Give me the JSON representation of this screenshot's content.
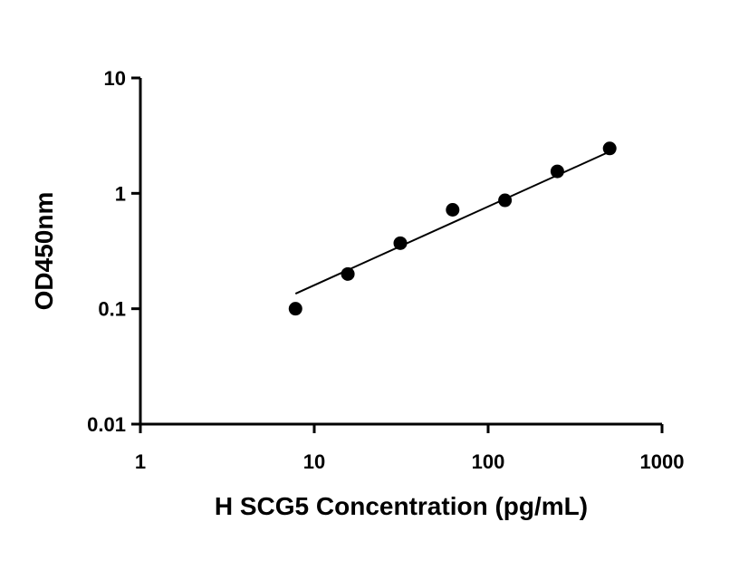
{
  "chart_data": {
    "type": "scatter",
    "title": "",
    "xlabel": "H SCG5 Concentration (pg/mL)",
    "ylabel": "OD450nm",
    "xscale": "log",
    "yscale": "log",
    "xlim": [
      1,
      1000
    ],
    "ylim": [
      0.01,
      10
    ],
    "xticks": [
      1,
      10,
      100,
      1000
    ],
    "xtick_labels": [
      "1",
      "10",
      "100",
      "1000"
    ],
    "yticks": [
      0.01,
      0.1,
      1,
      10
    ],
    "ytick_labels": [
      "0.01",
      "0.1",
      "1",
      "10"
    ],
    "grid": false,
    "legend": "none",
    "series": [
      {
        "marker": "filled-circle",
        "color": "#000000",
        "points": [
          {
            "x": 7.8,
            "y": 0.1
          },
          {
            "x": 15.6,
            "y": 0.2
          },
          {
            "x": 31.25,
            "y": 0.37
          },
          {
            "x": 62.5,
            "y": 0.72
          },
          {
            "x": 125,
            "y": 0.87
          },
          {
            "x": 250,
            "y": 1.55
          },
          {
            "x": 500,
            "y": 2.45
          }
        ]
      }
    ],
    "fit_line": {
      "type": "power",
      "color": "#000000",
      "x_range": [
        7.8,
        500
      ],
      "y_range": [
        0.135,
        2.3
      ]
    }
  }
}
